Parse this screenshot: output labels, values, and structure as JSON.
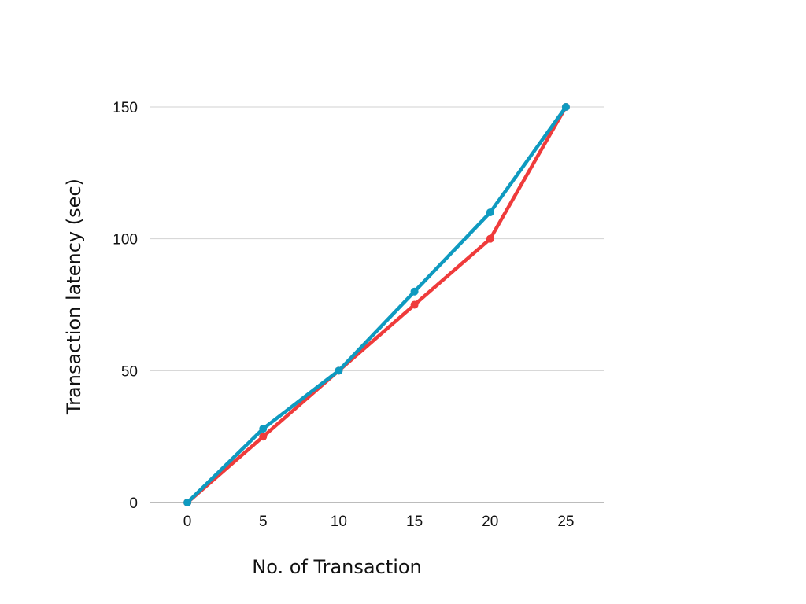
{
  "chart_data": {
    "type": "line",
    "title": "",
    "xlabel": "No. of Transaction",
    "ylabel": "Transaction latency (sec)",
    "x": [
      0,
      5,
      10,
      15,
      20,
      25
    ],
    "xticks": [
      "0",
      "5",
      "10",
      "15",
      "20",
      "25"
    ],
    "yticks": [
      0,
      50,
      100,
      150
    ],
    "xlim": [
      -2.5,
      27.5
    ],
    "ylim": [
      0,
      150
    ],
    "grid": true,
    "legend": "none",
    "series": [
      {
        "values": [
          0,
          25,
          50,
          75,
          100,
          150
        ],
        "color": "#ef3b3b"
      },
      {
        "values": [
          0,
          28,
          50,
          80,
          110,
          150
        ],
        "color": "#0e9ac0"
      }
    ]
  }
}
